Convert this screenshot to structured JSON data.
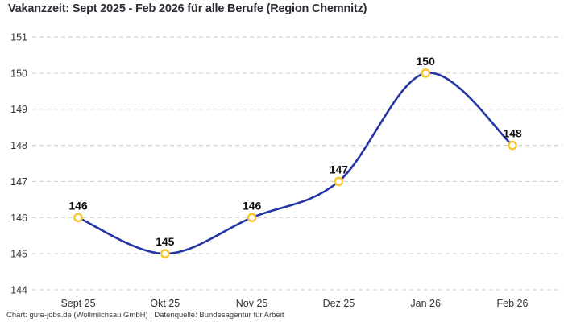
{
  "title": "Vakanzzeit: Sept 2025 - Feb 2026 für alle Berufe (Region Chemnitz)",
  "footer": "Chart: gute-jobs.de (Wollmilchsau GmbH) | Datenquelle: Bundesagentur für Arbeit",
  "colors": {
    "line": "#2336a4",
    "marker": "#fbc32c",
    "marker_fill": "#ffffff",
    "grid": "#c9c9c9",
    "title_text": "#2b2e35",
    "axis_text": "#333333",
    "value_text": "#111111",
    "background": "#ffffff"
  },
  "chart_data": {
    "type": "line",
    "title": "Vakanzzeit: Sept 2025 - Feb 2026 für alle Berufe (Region Chemnitz)",
    "categories": [
      "Sept 25",
      "Okt 25",
      "Nov 25",
      "Dez 25",
      "Jan 26",
      "Feb 26"
    ],
    "values": [
      146,
      145,
      146,
      147,
      150,
      148
    ],
    "series_name": "Vakanzzeit",
    "xlabel": "",
    "ylabel": "",
    "ylim": [
      144,
      151
    ],
    "ytick_step": 1,
    "yticks": [
      144,
      145,
      146,
      147,
      148,
      149,
      150,
      151
    ],
    "grid": "horizontal-dashed",
    "legend": "none",
    "smooth": true,
    "point_labels_visible": true
  }
}
